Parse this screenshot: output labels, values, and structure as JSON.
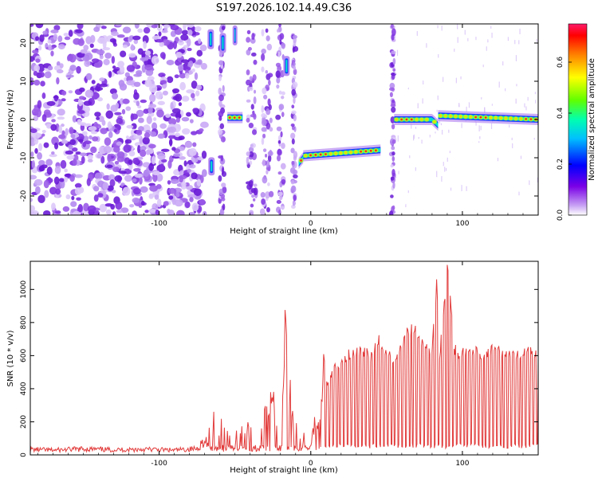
{
  "title": "S197.2026.102.14.49.C36",
  "colors": {
    "signal": "#e23b3b",
    "noise_dark": "#6a1bd6",
    "noise_light": "#c9a8f5"
  },
  "chart_data": [
    {
      "type": "heatmap",
      "xlabel": "Height of straight line (km)",
      "ylabel": "Frequency (Hz)",
      "xlim": [
        -185,
        150
      ],
      "ylim": [
        -25,
        25
      ],
      "xticks": [
        -100,
        0,
        100
      ],
      "xtick_labels": [
        "-100",
        "0",
        "100"
      ],
      "yticks": [
        -20,
        -10,
        0,
        10,
        20
      ],
      "ytick_labels": [
        "-20",
        "-10",
        "0",
        "10",
        "20"
      ],
      "colorbar": {
        "label": "Normalized spectral amplitude",
        "range": [
          0,
          0.75
        ],
        "ticks": [
          0,
          0.2,
          0.4,
          0.6
        ],
        "tick_labels": [
          "0.0",
          "0.2",
          "0.4",
          "0.6"
        ],
        "colormap": "rainbow"
      },
      "features": [
        {
          "x_range": [
            -185,
            -72
          ],
          "kind": "broadband noise",
          "freq_range": [
            -25,
            25
          ]
        },
        {
          "x": -66,
          "kind": "streak",
          "freq": 21
        },
        {
          "x": -65,
          "kind": "spot",
          "freq": -12
        },
        {
          "x": -58,
          "kind": "streak",
          "freq": 20
        },
        {
          "x_range": [
            -55,
            -45
          ],
          "kind": "tone",
          "freq": 0.5
        },
        {
          "x": -16,
          "kind": "streak",
          "freq": 14
        },
        {
          "x_range": [
            -8,
            46
          ],
          "kind": "tone",
          "freq_start": -11.5,
          "freq": -8
        },
        {
          "x_range": [
            55,
            150
          ],
          "kind": "tone",
          "freq": 0
        }
      ]
    },
    {
      "type": "line",
      "xlabel": "Height of straight line (km)",
      "ylabel": "SNR (10 * v/v)",
      "xlim": [
        -185,
        150
      ],
      "ylim": [
        0,
        1170
      ],
      "xticks": [
        -100,
        0,
        100
      ],
      "xtick_labels": [
        "-100",
        "0",
        "100"
      ],
      "yticks": [
        0,
        200,
        400,
        600,
        800,
        1000
      ],
      "ytick_labels": [
        "0",
        "200",
        "400",
        "600",
        "800",
        "1000"
      ],
      "series": [
        {
          "x": [
            -185,
            -170,
            -150,
            -130,
            -110,
            -90,
            -75,
            -68,
            -64,
            -60,
            -57,
            -54,
            -50,
            -46,
            -42,
            -38,
            -34,
            -31,
            -28,
            -25,
            -22,
            -19,
            -17,
            -15,
            -14,
            -12,
            -10,
            -8,
            -6,
            -4,
            -2,
            0,
            2,
            4,
            6,
            8,
            8.5,
            10,
            12,
            15,
            20,
            25,
            30,
            35,
            40,
            45,
            50,
            55,
            60,
            65,
            70,
            75,
            80,
            83,
            85,
            88,
            90,
            95,
            100,
            105,
            110,
            115,
            120,
            125,
            130,
            135,
            140,
            145,
            150
          ],
          "y": [
            35,
            30,
            38,
            32,
            36,
            30,
            40,
            120,
            260,
            230,
            180,
            170,
            140,
            150,
            210,
            250,
            260,
            320,
            280,
            410,
            330,
            430,
            840,
            500,
            460,
            360,
            300,
            150,
            220,
            90,
            190,
            50,
            200,
            300,
            320,
            450,
            640,
            500,
            440,
            560,
            580,
            630,
            650,
            660,
            610,
            730,
            650,
            600,
            700,
            800,
            780,
            680,
            640,
            1090,
            640,
            960,
            1170,
            660,
            640,
            650,
            650,
            620,
            660,
            640,
            650,
            630,
            640,
            640,
            620
          ]
        }
      ]
    }
  ]
}
